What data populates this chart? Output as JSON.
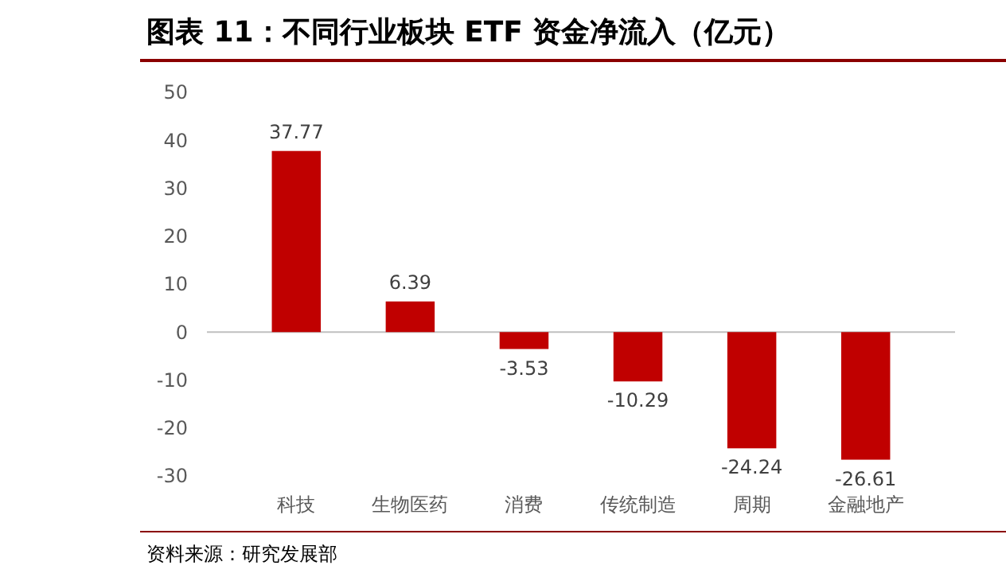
{
  "chart_data": {
    "type": "bar",
    "title": "图表 11：不同行业板块 ETF 资金净流入（亿元）",
    "categories": [
      "科技",
      "生物医药",
      "消费",
      "传统制造",
      "周期",
      "金融地产"
    ],
    "values": [
      37.77,
      6.39,
      -3.53,
      -10.29,
      -24.24,
      -26.61
    ],
    "color": "#c00000",
    "ylim": [
      -30,
      50
    ],
    "yticks": [
      -30,
      -20,
      -10,
      0,
      10,
      20,
      30,
      40,
      50
    ],
    "data_labels": true,
    "annotations": [
      "资料来源：研究发展部"
    ]
  }
}
